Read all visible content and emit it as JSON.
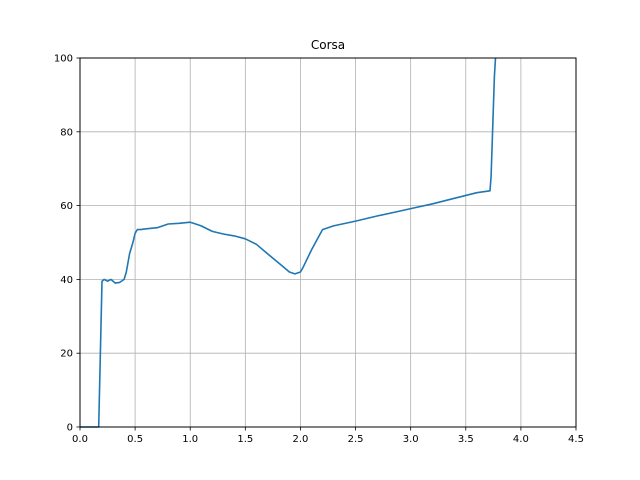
{
  "chart_data": {
    "type": "line",
    "title": "Corsa",
    "xlabel": "",
    "ylabel": "",
    "xlim": [
      0.0,
      4.5
    ],
    "ylim": [
      0,
      100
    ],
    "grid": true,
    "x_ticks": [
      "0.0",
      "0.5",
      "1.0",
      "1.5",
      "2.0",
      "2.5",
      "3.0",
      "3.5",
      "4.0",
      "4.5"
    ],
    "y_ticks": [
      "0",
      "20",
      "40",
      "60",
      "80",
      "100"
    ],
    "series": [
      {
        "color": "#1f77b4",
        "x": [
          0.0,
          0.17,
          0.2,
          0.22,
          0.25,
          0.28,
          0.32,
          0.36,
          0.4,
          0.42,
          0.45,
          0.48,
          0.5,
          0.52,
          0.55,
          0.6,
          0.7,
          0.8,
          0.9,
          1.0,
          1.05,
          1.1,
          1.2,
          1.3,
          1.4,
          1.5,
          1.6,
          1.7,
          1.8,
          1.9,
          1.95,
          2.0,
          2.02,
          2.1,
          2.2,
          2.3,
          2.5,
          2.7,
          2.9,
          3.0,
          3.2,
          3.4,
          3.6,
          3.72,
          3.73,
          3.76,
          3.77
        ],
        "y": [
          0,
          0,
          39.5,
          40,
          39.5,
          40,
          39,
          39.2,
          40,
          42,
          47,
          50,
          52.5,
          53.5,
          53.5,
          53.7,
          54,
          55,
          55.2,
          55.5,
          55,
          54.5,
          53,
          52.3,
          51.8,
          51,
          49.5,
          47,
          44.5,
          42,
          41.5,
          42,
          43,
          48,
          53.5,
          54.5,
          55.8,
          57.2,
          58.5,
          59.2,
          60.5,
          62,
          63.5,
          64,
          68,
          95,
          100
        ]
      }
    ]
  }
}
